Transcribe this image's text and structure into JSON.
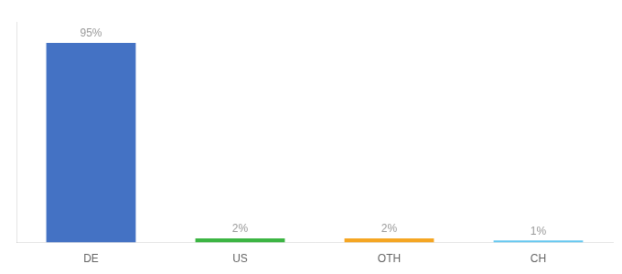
{
  "chart_data": {
    "type": "bar",
    "categories": [
      "DE",
      "US",
      "OTH",
      "CH"
    ],
    "values": [
      95,
      2,
      2,
      1
    ],
    "value_labels": [
      "95%",
      "2%",
      "2%",
      "1%"
    ],
    "colors": [
      "#4472c4",
      "#3cb543",
      "#f5a623",
      "#64c8f0"
    ],
    "ylim": [
      0,
      105
    ],
    "grid": false,
    "data_labels": true,
    "tick_labels": "x"
  }
}
